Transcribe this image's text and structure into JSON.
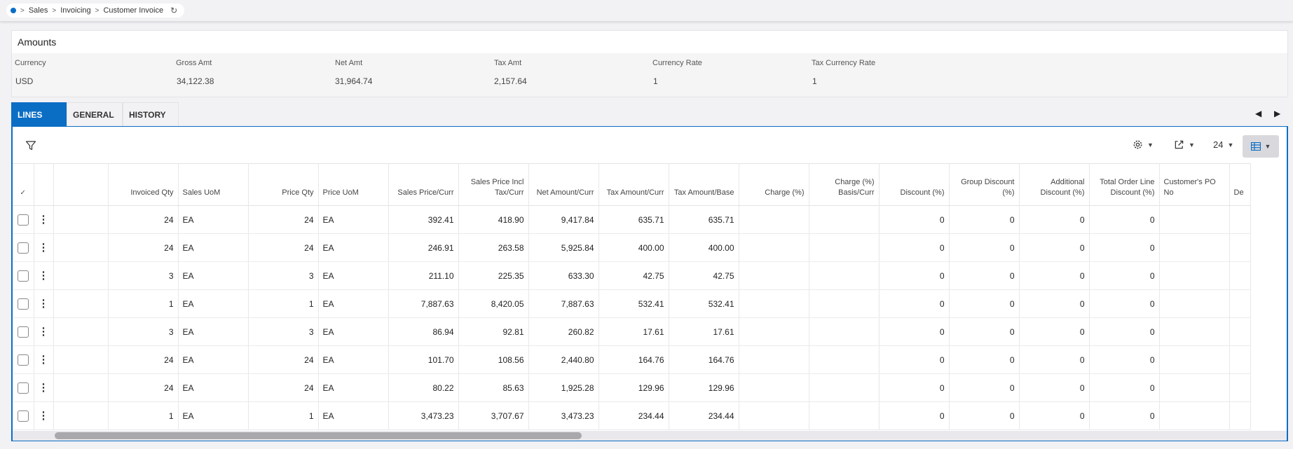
{
  "breadcrumb": {
    "items": [
      "Sales",
      "Invoicing",
      "Customer Invoice"
    ]
  },
  "amounts": {
    "title": "Amounts",
    "fields": [
      {
        "label": "Currency",
        "value": "USD"
      },
      {
        "label": "Gross Amt",
        "value": "34,122.38"
      },
      {
        "label": "Net Amt",
        "value": "31,964.74"
      },
      {
        "label": "Tax Amt",
        "value": "2,157.64"
      },
      {
        "label": "Currency Rate",
        "value": "1"
      },
      {
        "label": "Tax Currency Rate",
        "value": "1"
      }
    ]
  },
  "tabs": [
    {
      "label": "LINES",
      "active": true
    },
    {
      "label": "GENERAL",
      "active": false
    },
    {
      "label": "HISTORY",
      "active": false
    }
  ],
  "toolbar": {
    "page_size": "24"
  },
  "columns": [
    "Invoiced Qty",
    "Sales UoM",
    "Price Qty",
    "Price UoM",
    "Sales Price/Curr",
    "Sales Price Incl Tax/Curr",
    "Net Amount/Curr",
    "Tax Amount/Curr",
    "Tax Amount/Base",
    "Charge (%)",
    "Charge (%) Basis/Curr",
    "Discount (%)",
    "Group Discount (%)",
    "Additional Discount (%)",
    "Total Order Line Discount (%)",
    "Customer's PO No",
    "De"
  ],
  "rows": [
    [
      "24",
      "EA",
      "24",
      "EA",
      "392.41",
      "418.90",
      "9,417.84",
      "635.71",
      "635.71",
      "",
      "",
      "0",
      "0",
      "0",
      "0",
      "",
      ""
    ],
    [
      "24",
      "EA",
      "24",
      "EA",
      "246.91",
      "263.58",
      "5,925.84",
      "400.00",
      "400.00",
      "",
      "",
      "0",
      "0",
      "0",
      "0",
      "",
      ""
    ],
    [
      "3",
      "EA",
      "3",
      "EA",
      "211.10",
      "225.35",
      "633.30",
      "42.75",
      "42.75",
      "",
      "",
      "0",
      "0",
      "0",
      "0",
      "",
      ""
    ],
    [
      "1",
      "EA",
      "1",
      "EA",
      "7,887.63",
      "8,420.05",
      "7,887.63",
      "532.41",
      "532.41",
      "",
      "",
      "0",
      "0",
      "0",
      "0",
      "",
      ""
    ],
    [
      "3",
      "EA",
      "3",
      "EA",
      "86.94",
      "92.81",
      "260.82",
      "17.61",
      "17.61",
      "",
      "",
      "0",
      "0",
      "0",
      "0",
      "",
      ""
    ],
    [
      "24",
      "EA",
      "24",
      "EA",
      "101.70",
      "108.56",
      "2,440.80",
      "164.76",
      "164.76",
      "",
      "",
      "0",
      "0",
      "0",
      "0",
      "",
      ""
    ],
    [
      "24",
      "EA",
      "24",
      "EA",
      "80.22",
      "85.63",
      "1,925.28",
      "129.96",
      "129.96",
      "",
      "",
      "0",
      "0",
      "0",
      "0",
      "",
      ""
    ],
    [
      "1",
      "EA",
      "1",
      "EA",
      "3,473.23",
      "3,707.67",
      "3,473.23",
      "234.44",
      "234.44",
      "",
      "",
      "0",
      "0",
      "0",
      "0",
      "",
      ""
    ]
  ],
  "colors": {
    "accent": "#0b6ec5",
    "background": "#f2f1f4"
  }
}
